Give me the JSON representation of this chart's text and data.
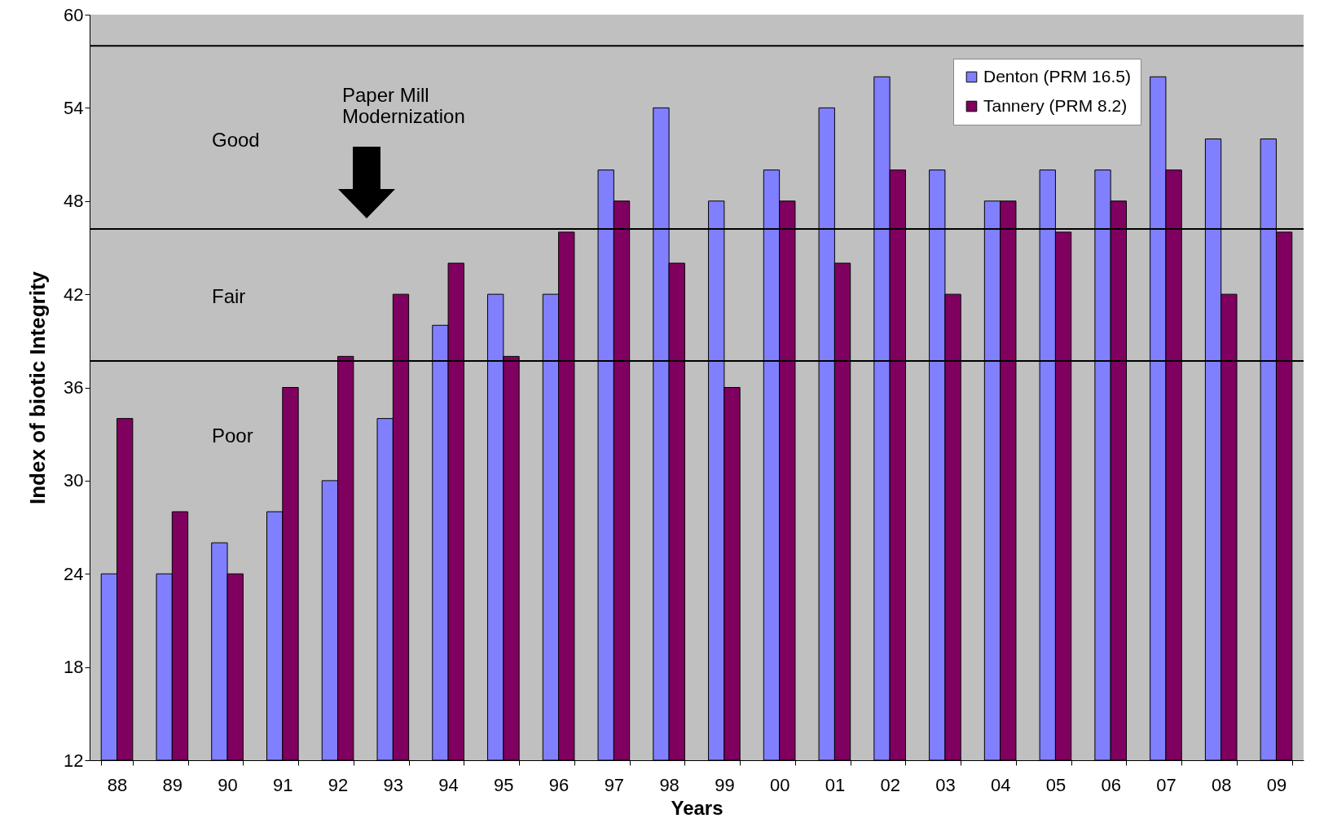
{
  "chart_data": {
    "type": "bar",
    "xlabel": "Years",
    "ylabel": "Index of biotic Integrity",
    "categories": [
      "88",
      "89",
      "90",
      "91",
      "92",
      "93",
      "94",
      "95",
      "96",
      "97",
      "98",
      "99",
      "00",
      "01",
      "02",
      "03",
      "04",
      "05",
      "06",
      "07",
      "08",
      "09"
    ],
    "series": [
      {
        "name": "Denton (PRM 16.5)",
        "color": "#8080ff",
        "values": [
          24,
          24,
          26,
          28,
          30,
          34,
          40,
          42,
          42,
          50,
          54,
          48,
          50,
          54,
          56,
          50,
          48,
          50,
          50,
          56,
          52,
          52
        ]
      },
      {
        "name": "Tannery (PRM 8.2)",
        "color": "#800060",
        "values": [
          34,
          28,
          24,
          36,
          38,
          42,
          44,
          38,
          46,
          48,
          44,
          36,
          48,
          44,
          50,
          42,
          48,
          46,
          48,
          50,
          42,
          46
        ]
      }
    ],
    "ylim": [
      12,
      60
    ],
    "yticks": [
      12,
      18,
      24,
      30,
      36,
      42,
      48,
      54,
      60
    ],
    "grid": false,
    "legend": "top right",
    "ref_lines": [
      {
        "axis": "y",
        "value": 58,
        "color": "#000000"
      },
      {
        "axis": "y",
        "value": 46.2,
        "color": "#000000"
      },
      {
        "axis": "y",
        "value": 37.7,
        "color": "#000000"
      }
    ],
    "annotations": [
      "Good",
      "Fair",
      "Poor",
      "Paper Mill\nModernization"
    ]
  }
}
